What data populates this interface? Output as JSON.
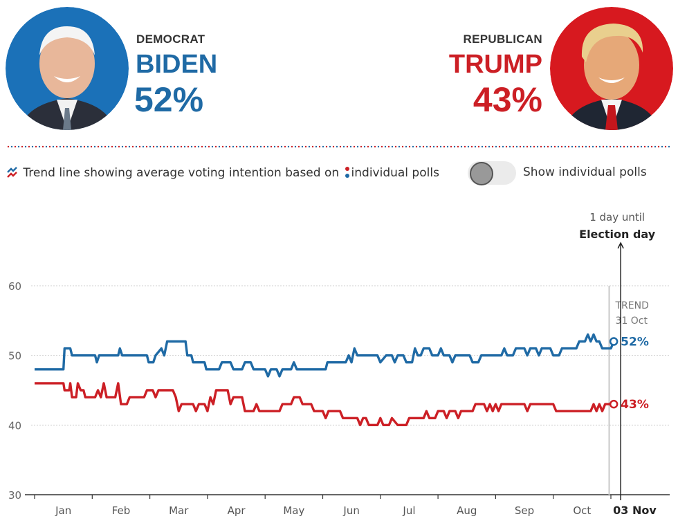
{
  "candidates": {
    "biden": {
      "party": "DEMOCRAT",
      "name": "BIDEN",
      "pct": "52%",
      "color": "#1f6aa5",
      "portrait_bg": "#1b71b8"
    },
    "trump": {
      "party": "REPUBLICAN",
      "name": "TRUMP",
      "pct": "43%",
      "color": "#cc1f25",
      "portrait_bg": "#d7191f"
    }
  },
  "legend": {
    "prefix": "Trend line showing average voting intention based on",
    "suffix": "individual polls"
  },
  "toggle": {
    "label": "Show individual polls",
    "on": false
  },
  "election": {
    "countdown": "1 day until",
    "label": "Election day",
    "date_label": "03 Nov"
  },
  "trend": {
    "label": "TREND",
    "date": "31 Oct"
  },
  "chart_data": {
    "type": "line",
    "title": "",
    "xlabel": "",
    "ylabel": "",
    "ylim": [
      30,
      60
    ],
    "yticks": [
      30,
      40,
      50,
      60
    ],
    "xlim": [
      0,
      10.4
    ],
    "x_ticks": [
      {
        "label": "Jan",
        "x": 0.5
      },
      {
        "label": "Feb",
        "x": 1.5
      },
      {
        "label": "Mar",
        "x": 2.5
      },
      {
        "label": "Apr",
        "x": 3.5
      },
      {
        "label": "May",
        "x": 4.5
      },
      {
        "label": "Jun",
        "x": 5.5
      },
      {
        "label": "Jul",
        "x": 6.5
      },
      {
        "label": "Aug",
        "x": 7.5
      },
      {
        "label": "Sep",
        "x": 8.5
      },
      {
        "label": "Oct",
        "x": 9.5
      }
    ],
    "x_unit": "months since 1 Jan 2020",
    "trend_x": 9.97,
    "election_x": 10.17,
    "series": [
      {
        "name": "Biden",
        "color": "#1f6aa5",
        "end_label": "52%",
        "points": [
          [
            0,
            48
          ],
          [
            0.5,
            48
          ],
          [
            0.52,
            51
          ],
          [
            0.62,
            51
          ],
          [
            0.65,
            50
          ],
          [
            1.05,
            50
          ],
          [
            1.08,
            49
          ],
          [
            1.12,
            50
          ],
          [
            1.45,
            50
          ],
          [
            1.48,
            51
          ],
          [
            1.52,
            50
          ],
          [
            1.95,
            50
          ],
          [
            1.98,
            49
          ],
          [
            2.06,
            49
          ],
          [
            2.1,
            50
          ],
          [
            2.2,
            51
          ],
          [
            2.25,
            50
          ],
          [
            2.3,
            52
          ],
          [
            2.62,
            52
          ],
          [
            2.65,
            50
          ],
          [
            2.72,
            50
          ],
          [
            2.75,
            49
          ],
          [
            2.95,
            49
          ],
          [
            2.98,
            48
          ],
          [
            3.2,
            48
          ],
          [
            3.25,
            49
          ],
          [
            3.4,
            49
          ],
          [
            3.45,
            48
          ],
          [
            3.6,
            48
          ],
          [
            3.65,
            49
          ],
          [
            3.75,
            49
          ],
          [
            3.8,
            48
          ],
          [
            3.9,
            48
          ],
          [
            4,
            48
          ],
          [
            4.05,
            47
          ],
          [
            4.1,
            48
          ],
          [
            4.2,
            48
          ],
          [
            4.25,
            47
          ],
          [
            4.3,
            48
          ],
          [
            4.45,
            48
          ],
          [
            4.5,
            49
          ],
          [
            4.55,
            48
          ],
          [
            5.05,
            48
          ],
          [
            5.08,
            49
          ],
          [
            5.4,
            49
          ],
          [
            5.45,
            50
          ],
          [
            5.5,
            49
          ],
          [
            5.55,
            51
          ],
          [
            5.6,
            50
          ],
          [
            5.95,
            50
          ],
          [
            6,
            49
          ],
          [
            6.1,
            50
          ],
          [
            6.2,
            50
          ],
          [
            6.25,
            49
          ],
          [
            6.3,
            50
          ],
          [
            6.4,
            50
          ],
          [
            6.45,
            49
          ],
          [
            6.55,
            49
          ],
          [
            6.6,
            51
          ],
          [
            6.65,
            50
          ],
          [
            6.7,
            50
          ],
          [
            6.75,
            51
          ],
          [
            6.85,
            51
          ],
          [
            6.9,
            50
          ],
          [
            7,
            50
          ],
          [
            7.05,
            51
          ],
          [
            7.1,
            50
          ],
          [
            7.2,
            50
          ],
          [
            7.25,
            49
          ],
          [
            7.3,
            50
          ],
          [
            7.55,
            50
          ],
          [
            7.6,
            49
          ],
          [
            7.7,
            49
          ],
          [
            7.75,
            50
          ],
          [
            8.1,
            50
          ],
          [
            8.15,
            51
          ],
          [
            8.2,
            50
          ],
          [
            8.3,
            50
          ],
          [
            8.35,
            51
          ],
          [
            8.5,
            51
          ],
          [
            8.55,
            50
          ],
          [
            8.6,
            51
          ],
          [
            8.7,
            51
          ],
          [
            8.75,
            50
          ],
          [
            8.8,
            51
          ],
          [
            8.95,
            51
          ],
          [
            9,
            50
          ],
          [
            9.1,
            50
          ],
          [
            9.15,
            51
          ],
          [
            9.4,
            51
          ],
          [
            9.45,
            52
          ],
          [
            9.55,
            52
          ],
          [
            9.6,
            53
          ],
          [
            9.65,
            52
          ],
          [
            9.7,
            53
          ],
          [
            9.75,
            52
          ],
          [
            9.8,
            52
          ],
          [
            9.85,
            51
          ],
          [
            10,
            51
          ],
          [
            10.05,
            52
          ]
        ]
      },
      {
        "name": "Trump",
        "color": "#cc1f25",
        "end_label": "43%",
        "points": [
          [
            0,
            46
          ],
          [
            0.5,
            46
          ],
          [
            0.52,
            45
          ],
          [
            0.6,
            45
          ],
          [
            0.62,
            46
          ],
          [
            0.65,
            44
          ],
          [
            0.72,
            44
          ],
          [
            0.75,
            46
          ],
          [
            0.8,
            45
          ],
          [
            0.85,
            45
          ],
          [
            0.88,
            44
          ],
          [
            1.05,
            44
          ],
          [
            1.1,
            45
          ],
          [
            1.15,
            44
          ],
          [
            1.2,
            46
          ],
          [
            1.25,
            44
          ],
          [
            1.4,
            44
          ],
          [
            1.45,
            46
          ],
          [
            1.5,
            43
          ],
          [
            1.6,
            43
          ],
          [
            1.65,
            44
          ],
          [
            1.9,
            44
          ],
          [
            1.95,
            45
          ],
          [
            2.05,
            45
          ],
          [
            2.1,
            44
          ],
          [
            2.15,
            45
          ],
          [
            2.4,
            45
          ],
          [
            2.45,
            44
          ],
          [
            2.5,
            42
          ],
          [
            2.55,
            43
          ],
          [
            2.75,
            43
          ],
          [
            2.8,
            42
          ],
          [
            2.85,
            43
          ],
          [
            2.95,
            43
          ],
          [
            3,
            42
          ],
          [
            3.05,
            44
          ],
          [
            3.1,
            43
          ],
          [
            3.15,
            45
          ],
          [
            3.35,
            45
          ],
          [
            3.4,
            43
          ],
          [
            3.45,
            44
          ],
          [
            3.6,
            44
          ],
          [
            3.65,
            42
          ],
          [
            3.8,
            42
          ],
          [
            3.85,
            43
          ],
          [
            3.9,
            42
          ],
          [
            4.25,
            42
          ],
          [
            4.3,
            43
          ],
          [
            4.45,
            43
          ],
          [
            4.5,
            44
          ],
          [
            4.6,
            44
          ],
          [
            4.65,
            43
          ],
          [
            4.8,
            43
          ],
          [
            4.85,
            42
          ],
          [
            5,
            42
          ],
          [
            5.05,
            41
          ],
          [
            5.1,
            42
          ],
          [
            5.3,
            42
          ],
          [
            5.35,
            41
          ],
          [
            5.6,
            41
          ],
          [
            5.65,
            40
          ],
          [
            5.7,
            41
          ],
          [
            5.75,
            41
          ],
          [
            5.8,
            40
          ],
          [
            5.95,
            40
          ],
          [
            6,
            41
          ],
          [
            6.05,
            40
          ],
          [
            6.15,
            40
          ],
          [
            6.2,
            41
          ],
          [
            6.3,
            40
          ],
          [
            6.45,
            40
          ],
          [
            6.5,
            41
          ],
          [
            6.75,
            41
          ],
          [
            6.8,
            42
          ],
          [
            6.85,
            41
          ],
          [
            6.95,
            41
          ],
          [
            7,
            42
          ],
          [
            7.1,
            42
          ],
          [
            7.15,
            41
          ],
          [
            7.2,
            42
          ],
          [
            7.3,
            42
          ],
          [
            7.35,
            41
          ],
          [
            7.4,
            42
          ],
          [
            7.6,
            42
          ],
          [
            7.65,
            43
          ],
          [
            7.8,
            43
          ],
          [
            7.85,
            42
          ],
          [
            7.9,
            43
          ],
          [
            7.95,
            42
          ],
          [
            8,
            43
          ],
          [
            8.05,
            42
          ],
          [
            8.1,
            43
          ],
          [
            8.5,
            43
          ],
          [
            8.55,
            42
          ],
          [
            8.6,
            43
          ],
          [
            9,
            43
          ],
          [
            9.05,
            42
          ],
          [
            9.65,
            42
          ],
          [
            9.7,
            43
          ],
          [
            9.75,
            42
          ],
          [
            9.8,
            43
          ],
          [
            9.85,
            42
          ],
          [
            9.9,
            43
          ],
          [
            10.05,
            43
          ]
        ]
      }
    ]
  }
}
